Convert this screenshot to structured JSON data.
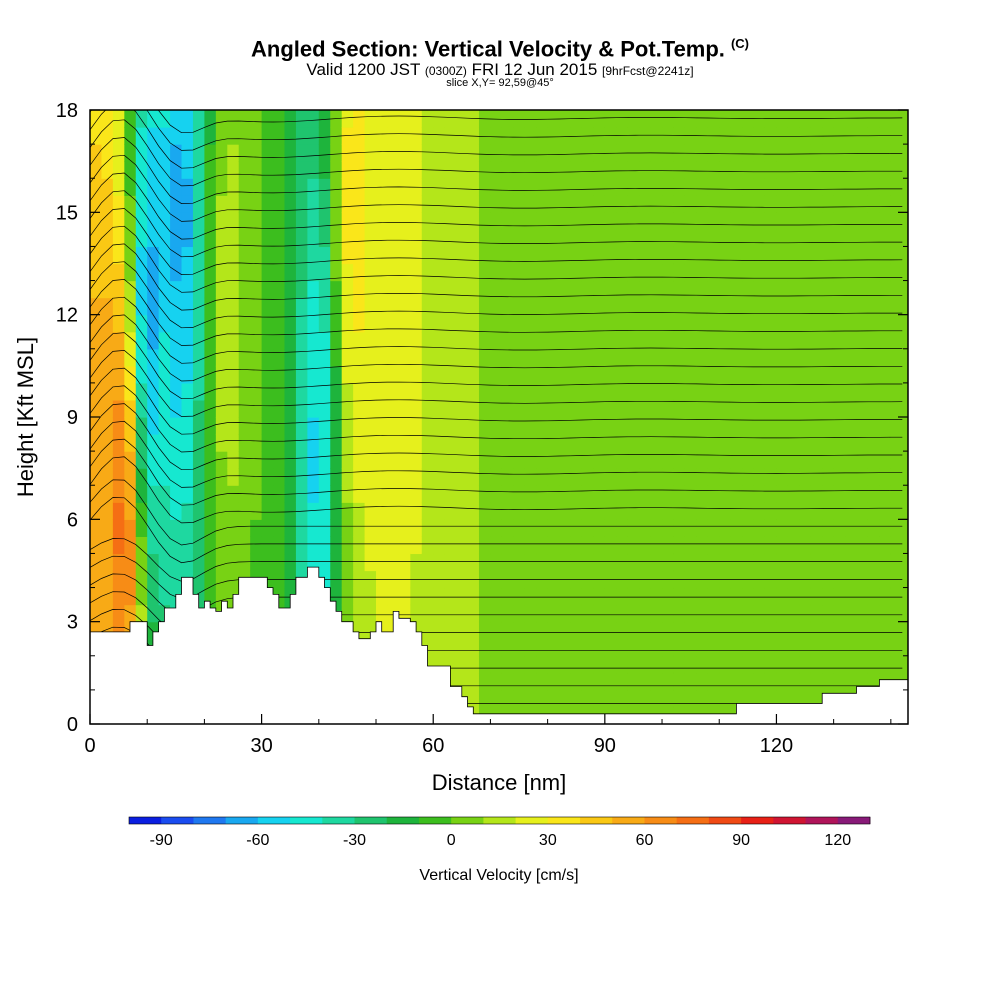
{
  "header": {
    "title": "Angled Section: Vertical Velocity & Pot.Temp.",
    "title_mark": "(C)",
    "valid_prefix": "Valid 1200 JST",
    "valid_utc": "(0300Z)",
    "valid_date": "FRI 12 Jun 2015",
    "forecast": "[9hrFcst@2241z]",
    "slice": "slice X,Y= 92,59@45°"
  },
  "chart_data": {
    "type": "heatmap",
    "title": "Angled Section: Vertical Velocity & Pot.Temp.",
    "xlabel": "Distance [nm]",
    "ylabel": "Height [Kft MSL]",
    "xlim": [
      0,
      143
    ],
    "ylim": [
      0,
      18
    ],
    "x_ticks": [
      0,
      30,
      60,
      90,
      120
    ],
    "y_ticks": [
      0,
      3,
      6,
      9,
      12,
      15,
      18
    ],
    "colorbar": {
      "label": "Vertical Velocity [cm/s]",
      "ticks": [
        -90,
        -60,
        -30,
        0,
        30,
        60,
        90,
        120
      ],
      "range": [
        -100,
        130
      ],
      "step": 10,
      "colors": [
        "#0a1ee0",
        "#1a4cf0",
        "#1f78f0",
        "#19a8f0",
        "#16d2f0",
        "#16e8d0",
        "#1ed8a0",
        "#1fc46e",
        "#1eb43c",
        "#3cbe1e",
        "#78d214",
        "#b4e61a",
        "#e6f01c",
        "#fae61a",
        "#fac814",
        "#f8aa16",
        "#f78c16",
        "#f56e14",
        "#f04a14",
        "#e82016",
        "#d01432",
        "#b0145a",
        "#881a78"
      ]
    },
    "series": [
      {
        "name": "Vertical Velocity",
        "units": "cm/s",
        "columns": [
          {
            "x": 2,
            "y": 6,
            "value": 60
          },
          {
            "x": 6,
            "y": 6,
            "value": 90
          },
          {
            "x": 10,
            "y": 12,
            "value": -80
          },
          {
            "x": 16,
            "y": 15,
            "value": -70
          },
          {
            "x": 24,
            "y": 12,
            "value": 20
          },
          {
            "x": 30,
            "y": 9,
            "value": 0
          },
          {
            "x": 40,
            "y": 8,
            "value": -60
          },
          {
            "x": 46,
            "y": 15,
            "value": 40
          },
          {
            "x": 52,
            "y": 14,
            "value": 30
          },
          {
            "x": 56,
            "y": 12,
            "value": 20
          },
          {
            "x": 80,
            "y": 9,
            "value": 0
          },
          {
            "x": 110,
            "y": 6,
            "value": 0
          }
        ]
      },
      {
        "name": "Potential Temperature",
        "units": "C"
      }
    ],
    "terrain": [
      [
        0,
        2.7
      ],
      [
        7,
        2.7
      ],
      [
        7,
        3
      ],
      [
        10,
        3
      ],
      [
        10,
        2.3
      ],
      [
        11,
        2.3
      ],
      [
        11,
        2.7
      ],
      [
        12,
        2.7
      ],
      [
        12,
        3
      ],
      [
        13,
        3
      ],
      [
        13,
        3.4
      ],
      [
        15,
        3.4
      ],
      [
        15,
        3.8
      ],
      [
        16,
        3.8
      ],
      [
        16,
        4.3
      ],
      [
        18,
        4.3
      ],
      [
        18,
        3.8
      ],
      [
        19,
        3.8
      ],
      [
        19,
        3.4
      ],
      [
        20,
        3.4
      ],
      [
        20,
        3.6
      ],
      [
        21,
        3.6
      ],
      [
        21,
        3.4
      ],
      [
        22,
        3.4
      ],
      [
        22,
        3.3
      ],
      [
        23,
        3.3
      ],
      [
        23,
        3.6
      ],
      [
        24,
        3.6
      ],
      [
        24,
        3.4
      ],
      [
        25,
        3.4
      ],
      [
        25,
        3.8
      ],
      [
        26,
        3.8
      ],
      [
        26,
        4.3
      ],
      [
        31,
        4.3
      ],
      [
        31,
        4
      ],
      [
        32,
        4
      ],
      [
        32,
        3.8
      ],
      [
        33,
        3.8
      ],
      [
        33,
        3.4
      ],
      [
        35,
        3.4
      ],
      [
        35,
        3.8
      ],
      [
        36,
        3.8
      ],
      [
        36,
        4.3
      ],
      [
        38,
        4.3
      ],
      [
        38,
        4.6
      ],
      [
        40,
        4.6
      ],
      [
        40,
        4.3
      ],
      [
        41,
        4.3
      ],
      [
        41,
        4
      ],
      [
        42,
        4
      ],
      [
        42,
        3.6
      ],
      [
        43,
        3.6
      ],
      [
        43,
        3.3
      ],
      [
        44,
        3.3
      ],
      [
        44,
        3
      ],
      [
        46,
        3
      ],
      [
        46,
        2.7
      ],
      [
        47,
        2.7
      ],
      [
        47,
        2.5
      ],
      [
        49,
        2.5
      ],
      [
        49,
        2.7
      ],
      [
        50,
        2.7
      ],
      [
        50,
        3
      ],
      [
        51,
        3
      ],
      [
        51,
        2.7
      ],
      [
        53,
        2.7
      ],
      [
        53,
        3.3
      ],
      [
        54,
        3.3
      ],
      [
        54,
        3.1
      ],
      [
        56,
        3.1
      ],
      [
        56,
        3
      ],
      [
        57,
        3
      ],
      [
        57,
        2.7
      ],
      [
        58,
        2.7
      ],
      [
        58,
        2.3
      ],
      [
        59,
        2.3
      ],
      [
        59,
        1.7
      ],
      [
        63,
        1.7
      ],
      [
        63,
        1.1
      ],
      [
        65,
        1.1
      ],
      [
        65,
        0.8
      ],
      [
        66,
        0.8
      ],
      [
        66,
        0.5
      ],
      [
        67,
        0.5
      ],
      [
        67,
        0.3
      ],
      [
        113,
        0.3
      ],
      [
        113,
        0.6
      ],
      [
        128,
        0.6
      ],
      [
        128,
        0.9
      ],
      [
        134,
        0.9
      ],
      [
        134,
        1.1
      ],
      [
        138,
        1.1
      ],
      [
        138,
        1.3
      ],
      [
        143,
        1.3
      ],
      [
        143,
        0
      ],
      [
        0,
        0
      ]
    ]
  }
}
